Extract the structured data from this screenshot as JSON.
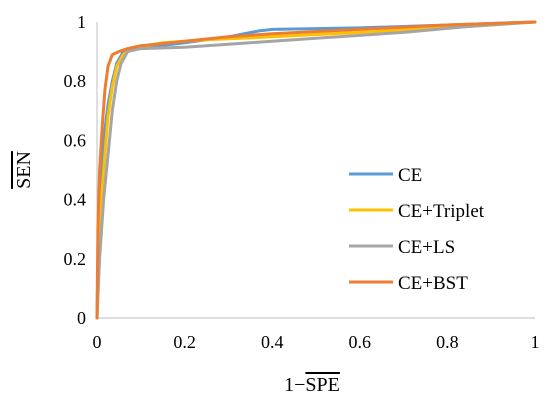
{
  "chart_data": {
    "type": "line",
    "xlabel_prefix": "1−",
    "xlabel_overline": "SPE",
    "ylabel_overline": "SEN",
    "xlim": [
      0,
      1
    ],
    "ylim": [
      0,
      1
    ],
    "x_ticks": [
      0,
      0.2,
      0.4,
      0.6,
      0.8,
      1
    ],
    "x_tick_labels": [
      "0",
      "0.2",
      "0.4",
      "0.6",
      "0.8",
      "1"
    ],
    "y_ticks": [
      0,
      0.2,
      0.4,
      0.6,
      0.8,
      1
    ],
    "y_tick_labels": [
      "0",
      "0.2",
      "0.4",
      "0.6",
      "0.8",
      "1"
    ],
    "grid": false,
    "legend_position": "right",
    "series": [
      {
        "name": "CE",
        "color": "#5b9bd5",
        "points": [
          [
            0,
            0
          ],
          [
            0.003,
            0.25
          ],
          [
            0.008,
            0.45
          ],
          [
            0.015,
            0.6
          ],
          [
            0.025,
            0.72
          ],
          [
            0.035,
            0.8
          ],
          [
            0.045,
            0.86
          ],
          [
            0.06,
            0.9
          ],
          [
            0.09,
            0.91
          ],
          [
            0.2,
            0.93
          ],
          [
            0.3,
            0.95
          ],
          [
            0.37,
            0.97
          ],
          [
            0.4,
            0.975
          ],
          [
            0.6,
            0.98
          ],
          [
            0.8,
            0.99
          ],
          [
            0.9,
            0.995
          ],
          [
            1,
            1
          ]
        ]
      },
      {
        "name": "CE+Triplet",
        "color": "#ffc000",
        "points": [
          [
            0,
            0
          ],
          [
            0.004,
            0.22
          ],
          [
            0.01,
            0.4
          ],
          [
            0.018,
            0.55
          ],
          [
            0.025,
            0.68
          ],
          [
            0.035,
            0.78
          ],
          [
            0.045,
            0.85
          ],
          [
            0.06,
            0.89
          ],
          [
            0.08,
            0.91
          ],
          [
            0.15,
            0.93
          ],
          [
            0.25,
            0.94
          ],
          [
            0.4,
            0.95
          ],
          [
            0.6,
            0.965
          ],
          [
            0.8,
            0.98
          ],
          [
            0.9,
            0.99
          ],
          [
            1,
            1
          ]
        ]
      },
      {
        "name": "CE+LS",
        "color": "#a5a5a5",
        "points": [
          [
            0,
            0
          ],
          [
            0.006,
            0.2
          ],
          [
            0.015,
            0.4
          ],
          [
            0.025,
            0.55
          ],
          [
            0.035,
            0.7
          ],
          [
            0.045,
            0.8
          ],
          [
            0.055,
            0.86
          ],
          [
            0.07,
            0.9
          ],
          [
            0.1,
            0.91
          ],
          [
            0.2,
            0.915
          ],
          [
            0.3,
            0.925
          ],
          [
            0.5,
            0.945
          ],
          [
            0.7,
            0.965
          ],
          [
            0.85,
            0.985
          ],
          [
            1,
            1
          ]
        ]
      },
      {
        "name": "CE+BST",
        "color": "#ed7d31",
        "points": [
          [
            0,
            0
          ],
          [
            0.002,
            0.3
          ],
          [
            0.006,
            0.5
          ],
          [
            0.012,
            0.65
          ],
          [
            0.018,
            0.77
          ],
          [
            0.025,
            0.85
          ],
          [
            0.035,
            0.89
          ],
          [
            0.05,
            0.9
          ],
          [
            0.07,
            0.91
          ],
          [
            0.1,
            0.92
          ],
          [
            0.2,
            0.935
          ],
          [
            0.3,
            0.95
          ],
          [
            0.4,
            0.96
          ],
          [
            0.6,
            0.975
          ],
          [
            0.8,
            0.99
          ],
          [
            0.9,
            0.995
          ],
          [
            1,
            1
          ]
        ]
      }
    ]
  }
}
